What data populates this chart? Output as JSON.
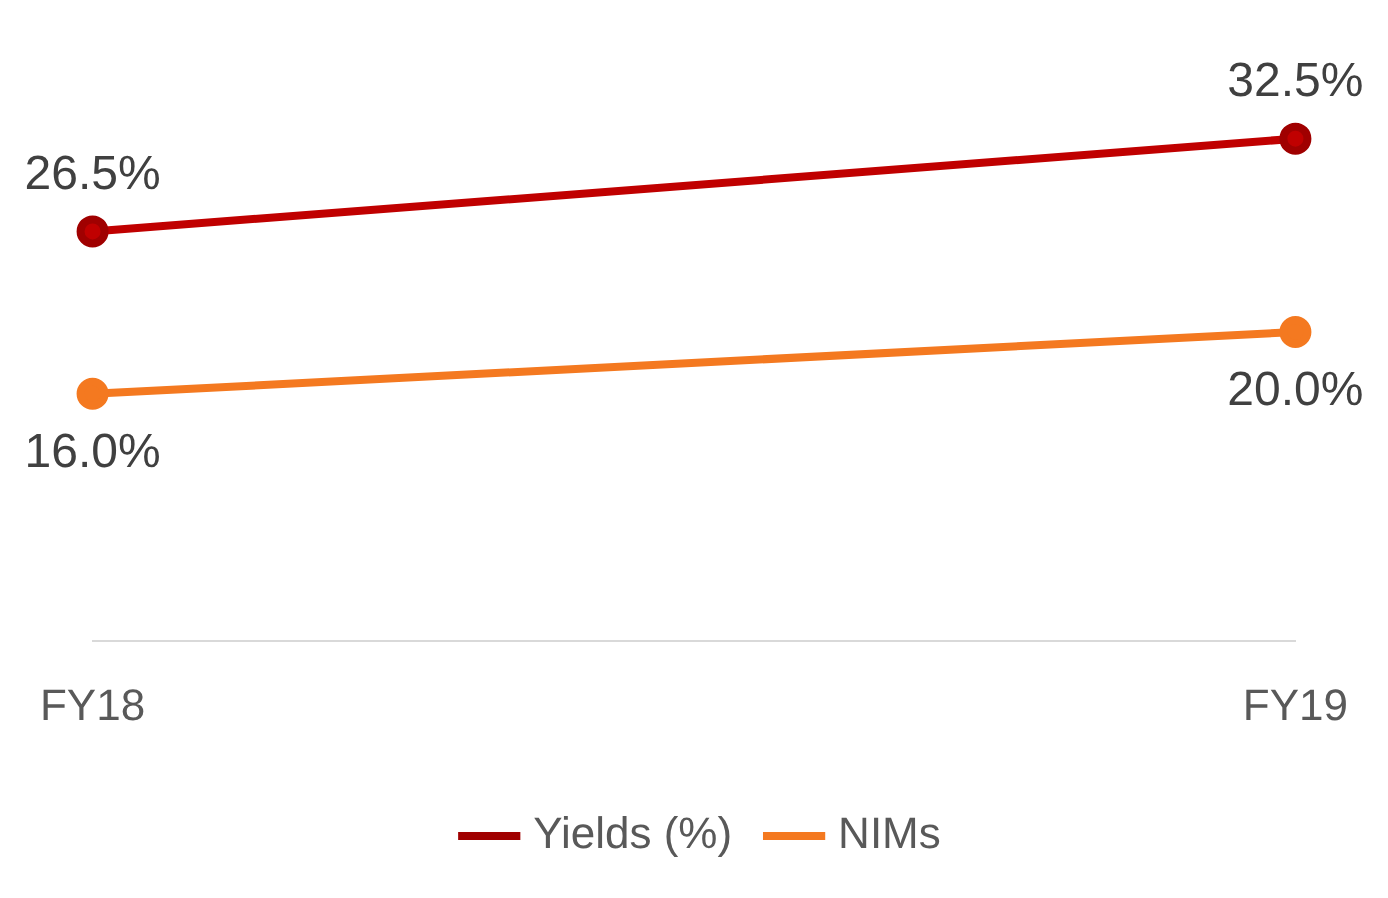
{
  "chart_data": {
    "type": "line",
    "categories": [
      "FY18",
      "FY19"
    ],
    "series": [
      {
        "name": "Yields (%)",
        "color": "#c00000",
        "values": [
          26.5,
          32.5
        ],
        "value_labels": [
          "26.5%",
          "32.5%"
        ]
      },
      {
        "name": "NIMs",
        "color": "#f47920",
        "values": [
          16.0,
          20.0
        ],
        "value_labels": [
          "16.0%",
          "20.0%"
        ]
      }
    ],
    "marker": "circle",
    "line_style": "solid",
    "legend": "bottom"
  }
}
